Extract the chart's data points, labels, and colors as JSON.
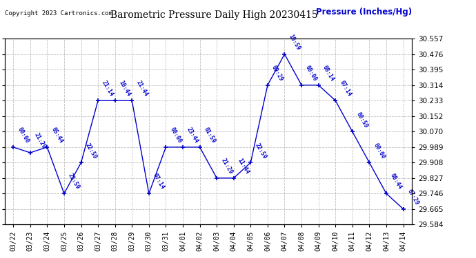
{
  "title": "Barometric Pressure Daily High 20230415",
  "ylabel": "Pressure (Inches/Hg)",
  "copyright": "Copyright 2023 Cartronics.com",
  "background_color": "#ffffff",
  "line_color": "#0000cc",
  "text_color": "#0000cc",
  "grid_color": "#b0b0b0",
  "ylim": [
    29.584,
    30.557
  ],
  "yticks": [
    29.584,
    29.665,
    29.746,
    29.827,
    29.908,
    29.989,
    30.07,
    30.152,
    30.233,
    30.314,
    30.395,
    30.476,
    30.557
  ],
  "dates": [
    "03/22",
    "03/23",
    "03/24",
    "03/25",
    "03/26",
    "03/27",
    "03/28",
    "03/29",
    "03/30",
    "03/31",
    "04/01",
    "04/02",
    "04/03",
    "04/04",
    "04/05",
    "04/06",
    "04/07",
    "04/08",
    "04/09",
    "04/10",
    "04/11",
    "04/12",
    "04/13",
    "04/14"
  ],
  "values": [
    29.989,
    29.96,
    29.989,
    29.746,
    29.908,
    30.233,
    30.233,
    30.233,
    29.746,
    29.989,
    29.989,
    29.989,
    29.827,
    29.827,
    29.908,
    30.314,
    30.476,
    30.314,
    30.314,
    30.233,
    30.07,
    29.908,
    29.746,
    29.665
  ],
  "times": [
    "00:00",
    "21:29",
    "05:44",
    "23:59",
    "22:59",
    "21:14",
    "10:44",
    "21:44",
    "07:14",
    "00:00",
    "23:44",
    "01:59",
    "21:29",
    "11:44",
    "22:59",
    "09:29",
    "10:59",
    "00:00",
    "08:14",
    "07:14",
    "00:59",
    "00:00",
    "08:44",
    "07:29"
  ]
}
